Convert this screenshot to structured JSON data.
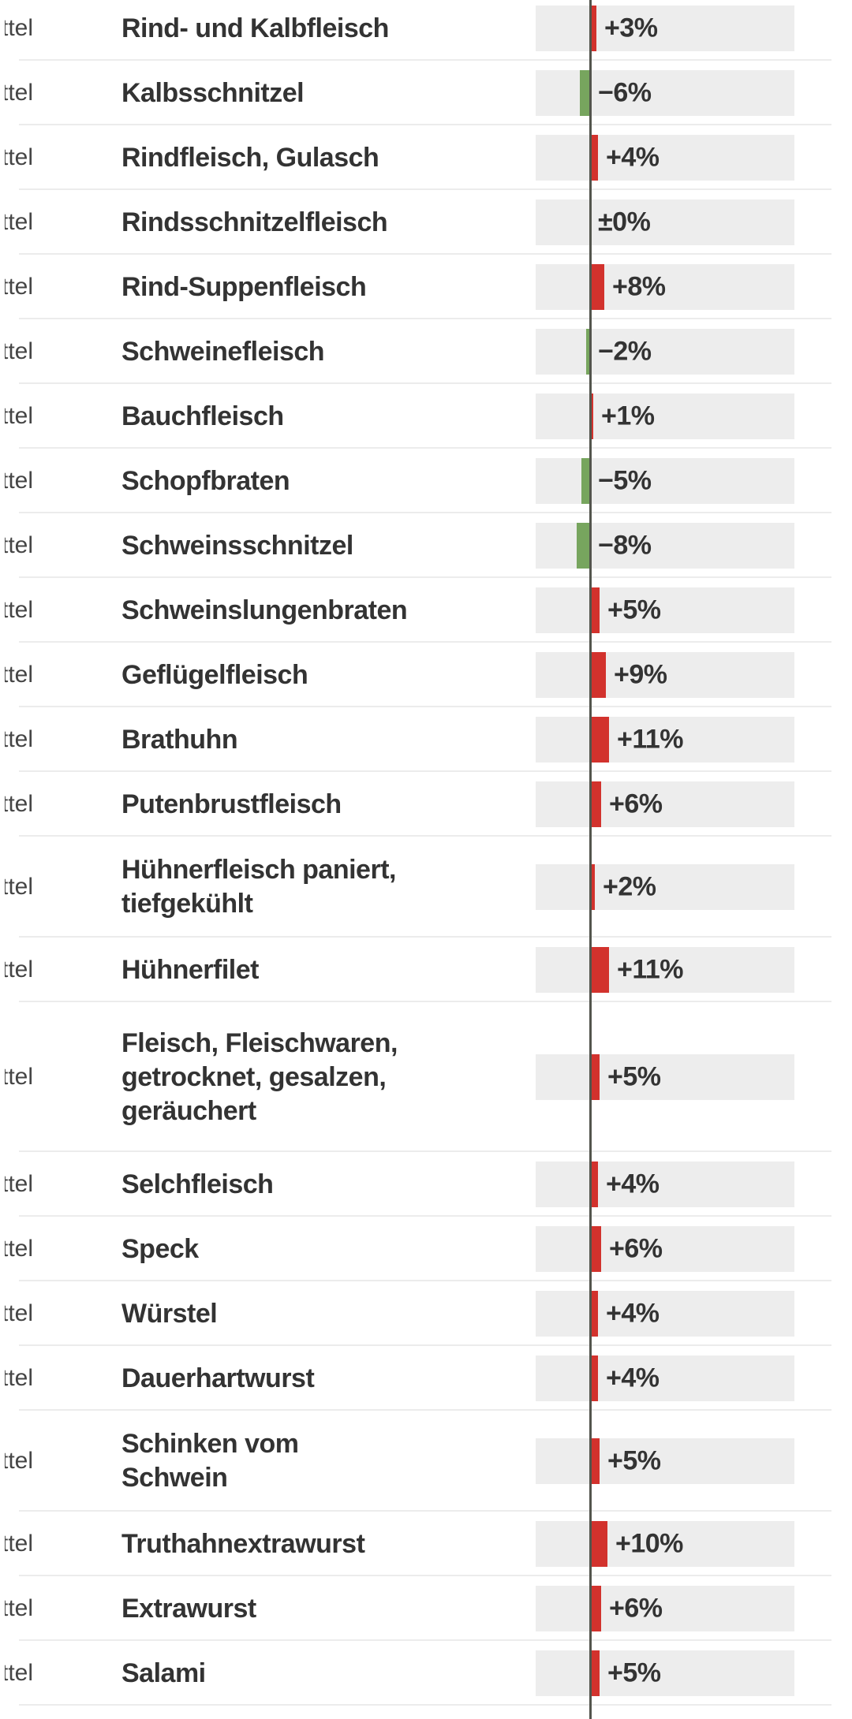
{
  "chart_data": {
    "type": "bar",
    "orientation": "horizontal",
    "unit": "%",
    "baseline": 0,
    "title": "",
    "xlabel": "",
    "ylabel": "",
    "gridlines": false,
    "legend": "none",
    "xlim": [
      -35,
      125
    ],
    "categories": [
      "Rind- und Kalbfleisch",
      "Kalbsschnitzel",
      "Rindfleisch, Gulasch",
      "Rindsschnitzelfleisch",
      "Rind-Suppenfleisch",
      "Schweinefleisch",
      "Bauchfleisch",
      "Schopfbraten",
      "Schweinsschnitzel",
      "Schweinslungenbraten",
      "Geflügelfleisch",
      "Brathuhn",
      "Putenbrustfleisch",
      "Hühnerfleisch paniert, tiefgekühlt",
      "Hühnerfilet",
      "Fleisch, Fleischwaren, getrocknet, gesalzen, geräuchert",
      "Selchfleisch",
      "Speck",
      "Würstel",
      "Dauerhartwurst",
      "Schinken vom Schwein",
      "Truthahnextrawurst",
      "Extrawurst",
      "Salami"
    ],
    "values": [
      3,
      -6,
      4,
      0,
      8,
      -2,
      1,
      -5,
      -8,
      5,
      9,
      11,
      6,
      2,
      11,
      5,
      4,
      6,
      4,
      4,
      5,
      10,
      6,
      5
    ],
    "value_labels": [
      "+3%",
      "−6%",
      "+4%",
      "±0%",
      "+8%",
      "−2%",
      "+1%",
      "−5%",
      "−8%",
      "+5%",
      "+9%",
      "+11%",
      "+6%",
      "+2%",
      "+11%",
      "+5%",
      "+4%",
      "+6%",
      "+4%",
      "+4%",
      "+5%",
      "+10%",
      "+6%",
      "+5%"
    ],
    "positive_color": "#d2322d",
    "negative_color": "#77a55e",
    "axis_line_color": "#53554d",
    "bar_track_color": "#ededed",
    "text_color": "#333333",
    "separator_color": "#ececec"
  },
  "rows": [
    {
      "category_fragment": "ttel",
      "name": "Rind- und Kalbfleisch",
      "value": 3,
      "display": "+3%"
    },
    {
      "category_fragment": "ttel",
      "name": "Kalbsschnitzel",
      "value": -6,
      "display": "−6%"
    },
    {
      "category_fragment": "ttel",
      "name": "Rindfleisch, Gulasch",
      "value": 4,
      "display": "+4%"
    },
    {
      "category_fragment": "ttel",
      "name": "Rindsschnitzelfleisch",
      "value": 0,
      "display": "±0%"
    },
    {
      "category_fragment": "ttel",
      "name": "Rind-Suppenfleisch",
      "value": 8,
      "display": "+8%"
    },
    {
      "category_fragment": "ttel",
      "name": "Schweinefleisch",
      "value": -2,
      "display": "−2%"
    },
    {
      "category_fragment": "ttel",
      "name": "Bauchfleisch",
      "value": 1,
      "display": "+1%"
    },
    {
      "category_fragment": "ttel",
      "name": "Schopfbraten",
      "value": -5,
      "display": "−5%"
    },
    {
      "category_fragment": "ttel",
      "name": "Schweinsschnitzel",
      "value": -8,
      "display": "−8%"
    },
    {
      "category_fragment": "ttel",
      "name": "Schweinslungenbraten",
      "value": 5,
      "display": "+5%"
    },
    {
      "category_fragment": "ttel",
      "name": "Geflügelfleisch",
      "value": 9,
      "display": "+9%"
    },
    {
      "category_fragment": "ttel",
      "name": "Brathuhn",
      "value": 11,
      "display": "+11%"
    },
    {
      "category_fragment": "ttel",
      "name": "Putenbrustfleisch",
      "value": 6,
      "display": "+6%"
    },
    {
      "category_fragment": "ttel",
      "name": "Hühnerfleisch paniert,\ntiefgekühlt",
      "value": 2,
      "display": "+2%"
    },
    {
      "category_fragment": "ttel",
      "name": "Hühnerfilet",
      "value": 11,
      "display": "+11%"
    },
    {
      "category_fragment": "ttel",
      "name": "Fleisch, Fleischwaren,\ngetrocknet, gesalzen,\ngeräuchert",
      "value": 5,
      "display": "+5%"
    },
    {
      "category_fragment": "ttel",
      "name": "Selchfleisch",
      "value": 4,
      "display": "+4%"
    },
    {
      "category_fragment": "ttel",
      "name": "Speck",
      "value": 6,
      "display": "+6%"
    },
    {
      "category_fragment": "ttel",
      "name": "Würstel",
      "value": 4,
      "display": "+4%"
    },
    {
      "category_fragment": "ttel",
      "name": "Dauerhartwurst",
      "value": 4,
      "display": "+4%"
    },
    {
      "category_fragment": "ttel",
      "name": "Schinken vom\nSchwein",
      "value": 5,
      "display": "+5%"
    },
    {
      "category_fragment": "ttel",
      "name": "Truthahnextrawurst",
      "value": 10,
      "display": "+10%"
    },
    {
      "category_fragment": "ttel",
      "name": "Extrawurst",
      "value": 6,
      "display": "+6%"
    },
    {
      "category_fragment": "ttel",
      "name": "Salami",
      "value": 5,
      "display": "+5%"
    }
  ]
}
